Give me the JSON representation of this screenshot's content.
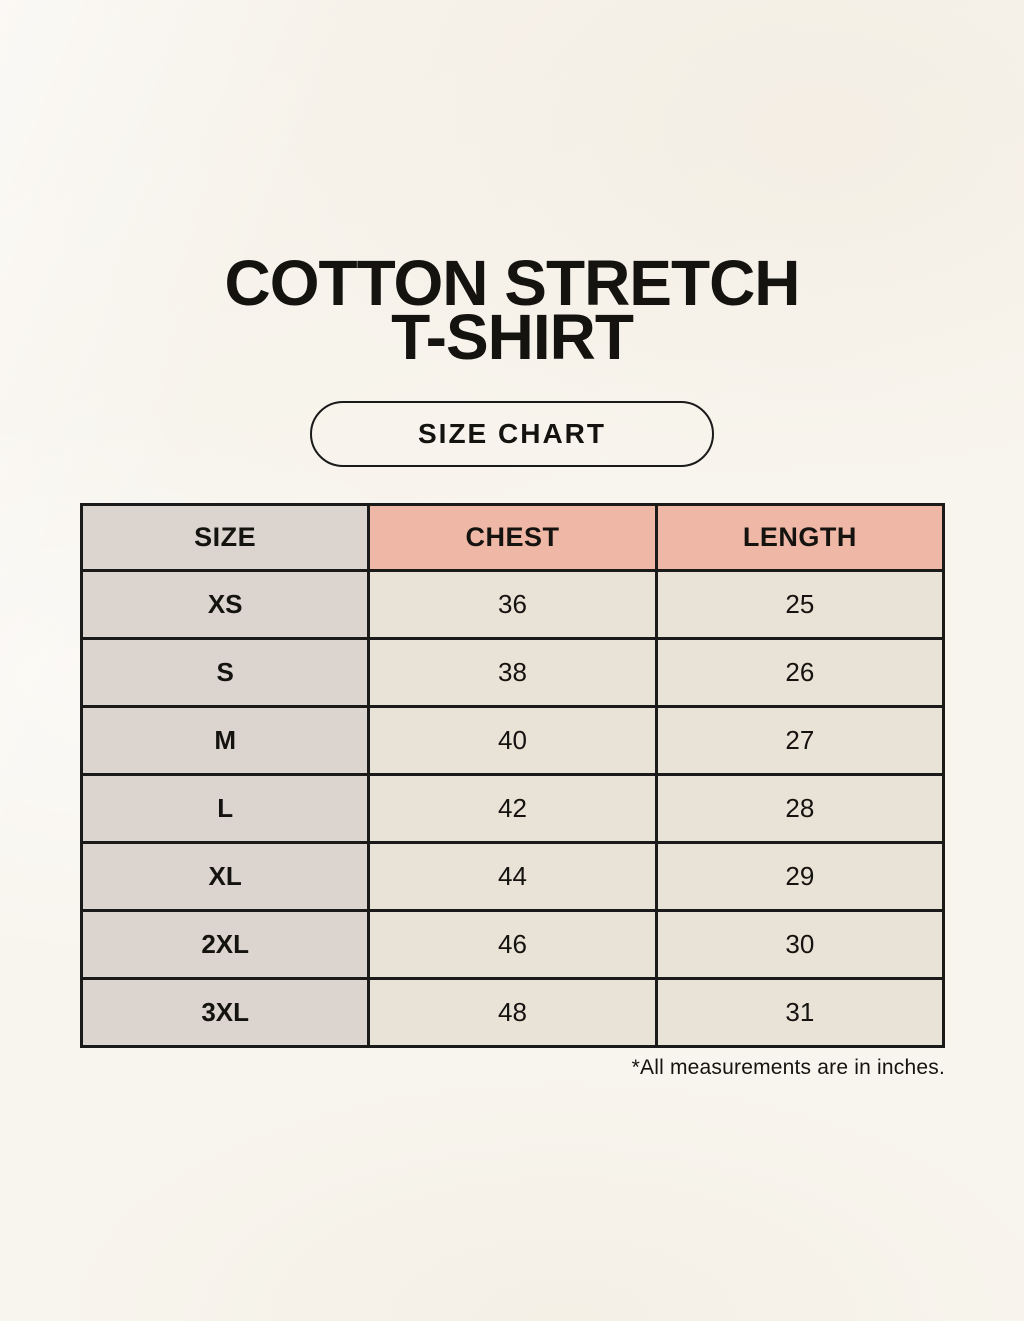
{
  "page": {
    "title_line1": "COTTON STRETCH",
    "title_line2": "T-SHIRT",
    "badge_label": "SIZE CHART",
    "footnote": "*All measurements are in inches."
  },
  "size_chart": {
    "columns": [
      "SIZE",
      "CHEST",
      "LENGTH"
    ],
    "rows": [
      [
        "XS",
        "36",
        "25"
      ],
      [
        "S",
        "38",
        "26"
      ],
      [
        "M",
        "40",
        "27"
      ],
      [
        "L",
        "42",
        "28"
      ],
      [
        "XL",
        "44",
        "29"
      ],
      [
        "2XL",
        "46",
        "30"
      ],
      [
        "3XL",
        "48",
        "31"
      ]
    ]
  },
  "chart_data": {
    "type": "table",
    "title": "COTTON STRETCH T-SHIRT — SIZE CHART",
    "columns": [
      "SIZE",
      "CHEST",
      "LENGTH"
    ],
    "rows": [
      [
        "XS",
        36,
        25
      ],
      [
        "S",
        38,
        26
      ],
      [
        "M",
        40,
        27
      ],
      [
        "L",
        42,
        28
      ],
      [
        "XL",
        44,
        29
      ],
      [
        "2XL",
        46,
        30
      ],
      [
        "3XL",
        48,
        31
      ]
    ],
    "units": "inches"
  },
  "colors": {
    "background": "#f8f5ee",
    "header_accent": "#efb7a6",
    "size_column": "#dcd5cf",
    "cell_background": "#e9e2d6",
    "table_border": "#1a1a1a",
    "text": "#151310"
  }
}
